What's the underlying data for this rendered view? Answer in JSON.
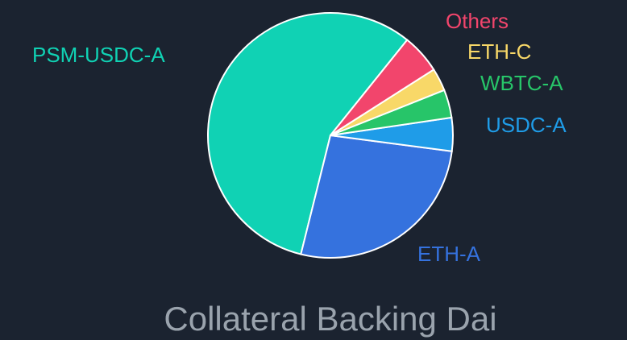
{
  "chart_data": {
    "type": "pie",
    "title": "Collateral Backing Dai",
    "categories": [
      "PSM-USDC-A",
      "ETH-A",
      "USDC-A",
      "WBTC-A",
      "ETH-C",
      "Others"
    ],
    "values": [
      56.9,
      26.8,
      4.4,
      3.7,
      3.0,
      5.2
    ],
    "colors": [
      "#10d2b4",
      "#3572de",
      "#1f9ce8",
      "#27c569",
      "#f8d868",
      "#f2456c"
    ]
  }
}
